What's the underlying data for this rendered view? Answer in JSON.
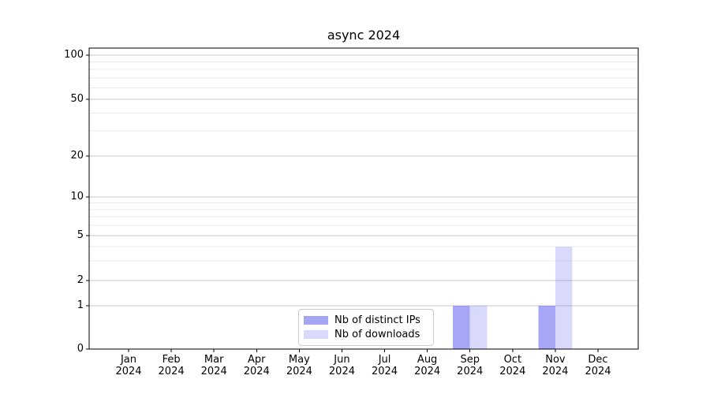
{
  "title": "async 2024",
  "colors": {
    "background": "#ffffff",
    "axis": "#000000",
    "grid_major": "#c8c8c8",
    "grid_minor": "#ebebeb",
    "bar_distinct_ips_hex": "#a6a6f6",
    "bar_downloads_hex": "#d9d9f7"
  },
  "chart_data": {
    "type": "bar",
    "title": "async 2024",
    "xlabel": "",
    "ylabel": "",
    "grid": true,
    "yscale": "symlog",
    "ylim": [
      0,
      112
    ],
    "yticks_major": [
      0,
      1,
      2,
      5,
      10,
      20,
      50,
      100
    ],
    "yticks_minor": [
      3,
      4,
      6,
      7,
      8,
      9,
      30,
      40,
      60,
      70,
      80,
      90
    ],
    "legend_position": "lower center",
    "categories": [
      "Jan 2024",
      "Feb 2024",
      "Mar 2024",
      "Apr 2024",
      "May 2024",
      "Jun 2024",
      "Jul 2024",
      "Aug 2024",
      "Sep 2024",
      "Oct 2024",
      "Nov 2024",
      "Dec 2024"
    ],
    "series": [
      {
        "key": "distinct-ips",
        "name": "Nb of distinct IPs",
        "color": "rgba(102,102,240,0.58)",
        "color_hex": "#a6a6f6",
        "values": [
          0,
          0,
          0,
          0,
          0,
          0,
          0,
          0,
          1,
          0,
          1,
          0
        ]
      },
      {
        "key": "downloads",
        "name": "Nb of downloads",
        "color": "rgba(102,102,240,0.25)",
        "color_hex": "#d9d9f7",
        "values": [
          0,
          0,
          0,
          0,
          0,
          0,
          0,
          0,
          1,
          0,
          4,
          0
        ]
      }
    ]
  }
}
